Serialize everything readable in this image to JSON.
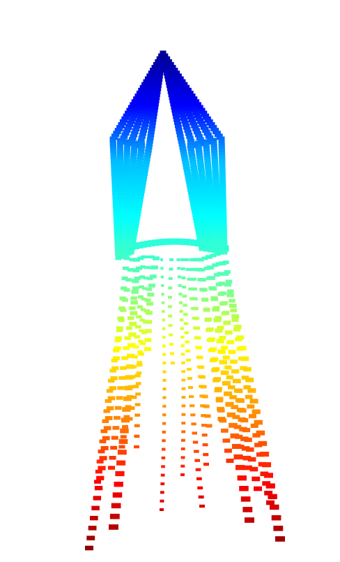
{
  "figure": {
    "background": "#ffffff",
    "colormap": "jet",
    "colormap_stops": [
      "#00008f",
      "#0000ff",
      "#00bfff",
      "#00ffff",
      "#5fffaf",
      "#ffff00",
      "#ff8c00",
      "#ff0000",
      "#8b0000"
    ]
  }
}
